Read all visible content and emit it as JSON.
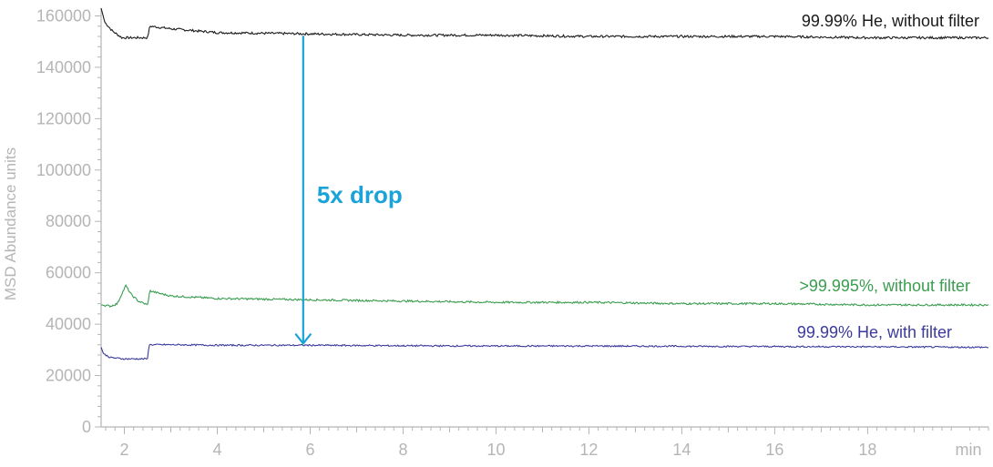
{
  "chart_data": {
    "type": "line",
    "title": "",
    "xlabel": "",
    "ylabel": "MSD Abundance units",
    "x_unit_label": "min",
    "xlim": [
      1.5,
      20.6
    ],
    "ylim": [
      0,
      163000
    ],
    "x_ticks": [
      2,
      4,
      6,
      8,
      10,
      12,
      14,
      16,
      18
    ],
    "y_ticks": [
      0,
      20000,
      40000,
      60000,
      80000,
      100000,
      120000,
      140000,
      160000
    ],
    "grid": false,
    "legend": "none",
    "series": [
      {
        "name": "99.99% He, without filter",
        "color": "#1a1a1a",
        "points": [
          [
            1.5,
            163000
          ],
          [
            1.58,
            157500
          ],
          [
            1.75,
            154000
          ],
          [
            1.95,
            151500
          ],
          [
            2.3,
            151500
          ],
          [
            2.5,
            151500
          ],
          [
            2.55,
            156000
          ],
          [
            3.0,
            155000
          ],
          [
            4.0,
            153500
          ],
          [
            6.0,
            153000
          ],
          [
            8.0,
            152500
          ],
          [
            10.0,
            152500
          ],
          [
            12.0,
            152000
          ],
          [
            14.0,
            152000
          ],
          [
            16.0,
            152000
          ],
          [
            18.0,
            151500
          ],
          [
            20.6,
            151500
          ]
        ]
      },
      {
        "name": ">99.995%, without filter",
        "color": "#3a9d4f",
        "points": [
          [
            1.5,
            47500
          ],
          [
            1.7,
            47000
          ],
          [
            1.85,
            48000
          ],
          [
            1.95,
            52000
          ],
          [
            2.03,
            55000
          ],
          [
            2.15,
            51500
          ],
          [
            2.3,
            49000
          ],
          [
            2.5,
            47500
          ],
          [
            2.55,
            53000
          ],
          [
            2.75,
            52000
          ],
          [
            3.0,
            51000
          ],
          [
            4.0,
            50000
          ],
          [
            6.0,
            49500
          ],
          [
            8.0,
            49000
          ],
          [
            10.0,
            48500
          ],
          [
            12.0,
            48500
          ],
          [
            14.0,
            48000
          ],
          [
            16.0,
            48000
          ],
          [
            18.0,
            47500
          ],
          [
            20.6,
            47500
          ]
        ]
      },
      {
        "name": "99.99% He, with filter",
        "color": "#3b3b9e",
        "points": [
          [
            1.5,
            31000
          ],
          [
            1.55,
            28500
          ],
          [
            1.7,
            27000
          ],
          [
            2.0,
            26500
          ],
          [
            2.5,
            26500
          ],
          [
            2.53,
            32000
          ],
          [
            3.0,
            32000
          ],
          [
            4.0,
            31800
          ],
          [
            6.0,
            31800
          ],
          [
            8.0,
            31600
          ],
          [
            10.0,
            31500
          ],
          [
            12.0,
            31500
          ],
          [
            14.0,
            31400
          ],
          [
            16.0,
            31300
          ],
          [
            18.0,
            31200
          ],
          [
            20.6,
            31000
          ]
        ]
      }
    ],
    "annotations": [
      {
        "label": "5x drop",
        "color": "#1aa3d9",
        "x": 5.85,
        "y_from": 153000,
        "y_to": 31800
      }
    ]
  }
}
